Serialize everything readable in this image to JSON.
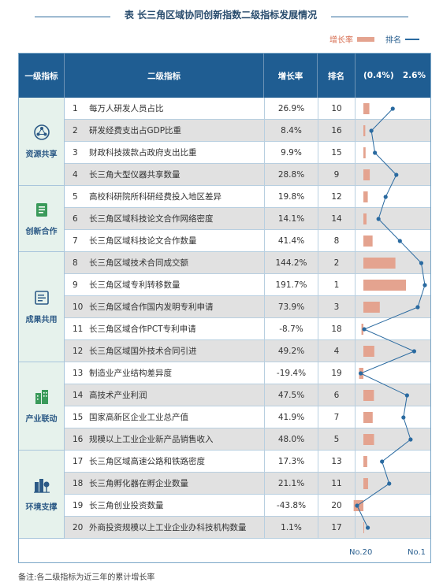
{
  "title": "表 长三角区域协同创新指数二级指标发展情况",
  "legend": {
    "rate_label": "增长率",
    "rank_label": "排名",
    "colors": {
      "bar": "#e4a38f",
      "line": "#2a6aa0"
    }
  },
  "header": {
    "col1": "一级指标",
    "col2": "二级指标",
    "col3": "增长率",
    "col4": "排名",
    "chart_min": "(0.4%)",
    "chart_max": "2.6%"
  },
  "groups": [
    {
      "label": "资源共享",
      "icon": "network-nodes-icon",
      "rows": 4
    },
    {
      "label": "创新合作",
      "icon": "document-icon",
      "rows": 3
    },
    {
      "label": "成果共用",
      "icon": "report-icon",
      "rows": 5
    },
    {
      "label": "产业联动",
      "icon": "buildings-icon",
      "rows": 4
    },
    {
      "label": "环境支撑",
      "icon": "city-tree-icon",
      "rows": 4
    }
  ],
  "rows": [
    {
      "num": "1",
      "name": "每万人研发人员占比",
      "rate": "26.9%",
      "rank": "10"
    },
    {
      "num": "2",
      "name": "研发经费支出占GDP比重",
      "rate": "8.4%",
      "rank": "16"
    },
    {
      "num": "3",
      "name": "财政科技拨款占政府支出比重",
      "rate": "9.9%",
      "rank": "15"
    },
    {
      "num": "4",
      "name": "长三角大型仪器共享数量",
      "rate": "28.8%",
      "rank": "9"
    },
    {
      "num": "5",
      "name": "高校科研院所科研经费投入地区差异",
      "rate": "19.8%",
      "rank": "12"
    },
    {
      "num": "6",
      "name": "长三角区域科技论文合作网络密度",
      "rate": "14.1%",
      "rank": "14"
    },
    {
      "num": "7",
      "name": "长三角区域科技论文合作数量",
      "rate": "41.4%",
      "rank": "8"
    },
    {
      "num": "8",
      "name": "长三角区域技术合同成交额",
      "rate": "144.2%",
      "rank": "2"
    },
    {
      "num": "9",
      "name": "长三角区域专利转移数量",
      "rate": "191.7%",
      "rank": "1"
    },
    {
      "num": "10",
      "name": "长三角区域合作国内发明专利申请",
      "rate": "73.9%",
      "rank": "3"
    },
    {
      "num": "11",
      "name": "长三角区域合作PCT专利申请",
      "rate": "-8.7%",
      "rank": "18"
    },
    {
      "num": "12",
      "name": "长三角区域国外技术合同引进",
      "rate": "49.2%",
      "rank": "4"
    },
    {
      "num": "13",
      "name": "制造业产业结构差异度",
      "rate": "-19.4%",
      "rank": "19"
    },
    {
      "num": "14",
      "name": "高技术产业利润",
      "rate": "47.5%",
      "rank": "6"
    },
    {
      "num": "15",
      "name": "国家高新区企业工业总产值",
      "rate": "41.9%",
      "rank": "7"
    },
    {
      "num": "16",
      "name": "规模以上工业企业新产品销售收入",
      "rate": "48.0%",
      "rank": "5"
    },
    {
      "num": "17",
      "name": "长三角区域高速公路和铁路密度",
      "rate": "17.3%",
      "rank": "13"
    },
    {
      "num": "18",
      "name": "长三角孵化器在孵企业数量",
      "rate": "21.1%",
      "rank": "11"
    },
    {
      "num": "19",
      "name": "长三角创业投资数量",
      "rate": "-43.8%",
      "rank": "20"
    },
    {
      "num": "20",
      "name": "外商投资规模以上工业企业办科技机构数量",
      "rate": "1.1%",
      "rank": "17"
    }
  ],
  "chart_data": {
    "type": "bar",
    "categories": [
      "1",
      "2",
      "3",
      "4",
      "5",
      "6",
      "7",
      "8",
      "9",
      "10",
      "11",
      "12",
      "13",
      "14",
      "15",
      "16",
      "17",
      "18",
      "19",
      "20"
    ],
    "series": [
      {
        "name": "增长率",
        "values": [
          26.9,
          8.4,
          9.9,
          28.8,
          19.8,
          14.1,
          41.4,
          144.2,
          191.7,
          73.9,
          -8.7,
          49.2,
          -19.4,
          47.5,
          41.9,
          48.0,
          17.3,
          21.1,
          -43.8,
          1.1
        ]
      },
      {
        "name": "排名",
        "values": [
          10,
          16,
          15,
          9,
          12,
          14,
          8,
          2,
          1,
          3,
          18,
          4,
          19,
          6,
          7,
          5,
          13,
          11,
          20,
          17
        ]
      }
    ],
    "rate_axis_labels": [
      "(0.4%)",
      "2.6%"
    ],
    "rank_axis_labels": [
      "No.20",
      "No.1"
    ]
  },
  "axis": {
    "left": "No.20",
    "right": "No.1"
  },
  "note": "备注:各二级指标为近三年的累计增长率"
}
